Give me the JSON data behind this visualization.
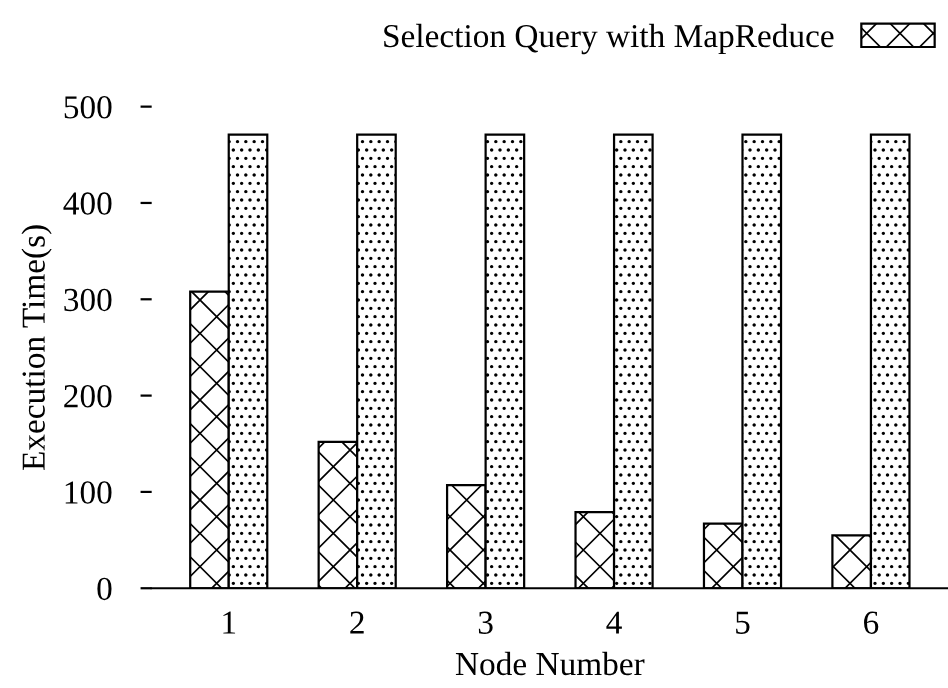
{
  "chart_data": {
    "type": "bar",
    "xlabel": "Node Number",
    "ylabel": "Execution Time(s)",
    "categories": [
      "1",
      "2",
      "3",
      "4",
      "5",
      "6"
    ],
    "series": [
      {
        "name": "Selection Query with MapReduce",
        "color": "#000000",
        "values": [
          308,
          152,
          107,
          79,
          67,
          55
        ]
      },
      {
        "color": "#000000",
        "values": [
          471,
          471,
          471,
          471,
          471,
          471
        ]
      }
    ],
    "ylim": [
      0,
      500
    ],
    "yticks": [
      0,
      100,
      200,
      300,
      400,
      500
    ],
    "grid": false,
    "legend": "top right"
  }
}
